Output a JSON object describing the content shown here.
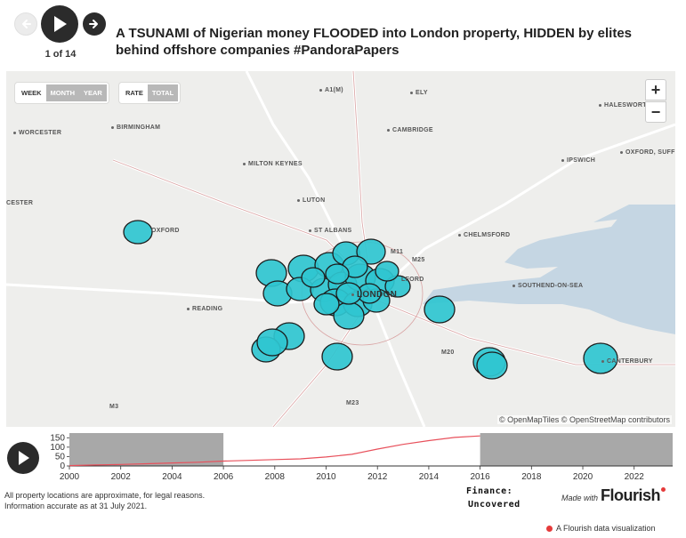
{
  "story": {
    "counter": "1 of 14",
    "headline": "A TSUNAMI of Nigerian money FLOODED into London property, HIDDEN by elites behind offshore companies #PandoraPapers"
  },
  "map": {
    "period_controls": [
      "WEEK",
      "MONTH",
      "YEAR"
    ],
    "period_active": "MONTH",
    "metric_controls": [
      "RATE",
      "TOTAL"
    ],
    "metric_active": "TOTAL",
    "zoom_in": "+",
    "zoom_out": "−",
    "attribution": "© OpenMapTiles © OpenStreetMap contributors",
    "places": [
      "BIRMINGHAM",
      "A1(M)",
      "ELY",
      "HALESWORTH",
      "WORCESTER",
      "CAMBRIDGE",
      "IPSWICH",
      "OXFORD, SUFF",
      "MILTON KEYNES",
      "LUTON",
      "CESTER",
      "OXFORD",
      "ST ALBANS",
      "CHELMSFORD",
      "M11",
      "M25",
      "LFORD",
      "LONDON",
      "SOUTHEND-ON-SEA",
      "READING",
      "M20",
      "CANTERBURY",
      "M3",
      "M23"
    ],
    "marker_color": "#2fc6d0"
  },
  "timeline": {
    "y_ticks": [
      0,
      50,
      100,
      150
    ],
    "x_ticks": [
      "2000",
      "2002",
      "2004",
      "2006",
      "2008",
      "2010",
      "2012",
      "2014",
      "2016",
      "2018",
      "2020",
      "2022"
    ],
    "selected_range": [
      "2006",
      "2016"
    ],
    "line_color": "#e8505b",
    "series": {
      "x": [
        2000,
        2001,
        2002,
        2003,
        2004,
        2005,
        2006,
        2007,
        2008,
        2009,
        2010,
        2011,
        2012,
        2013,
        2014,
        2015,
        2016
      ],
      "y": [
        2,
        5,
        8,
        12,
        16,
        20,
        26,
        30,
        34,
        38,
        48,
        62,
        90,
        115,
        135,
        152,
        160
      ]
    }
  },
  "footer": {
    "note_line1": "All property locations are approximate, for legal reasons.",
    "note_line2": "Information accurate as at 31 July 2021.",
    "logo_line1": "Finance:",
    "logo_line2": "Uncovered",
    "made_with_small": "Made with",
    "made_with_brand": "Flourish",
    "credit": "A Flourish data visualization"
  }
}
